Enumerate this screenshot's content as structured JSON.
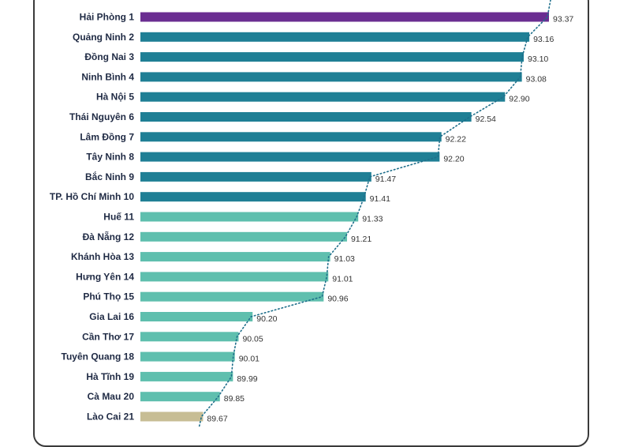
{
  "chart_data": {
    "type": "bar",
    "orientation": "horizontal",
    "categories": [
      "Hải Phòng",
      "Quảng Ninh",
      "Đồng Nai",
      "Ninh Bình",
      "Hà Nội",
      "Thái Nguyên",
      "Lâm Đồng",
      "Tây Ninh",
      "Bắc Ninh",
      "TP. Hồ Chí Minh",
      "Huế",
      "Đà Nẵng",
      "Khánh Hòa",
      "Hưng Yên",
      "Phú Thọ",
      "Gia Lai",
      "Cần Thơ",
      "Tuyên Quang",
      "Hà Tĩnh",
      "Cà Mau",
      "Lào Cai"
    ],
    "ranks": [
      "1",
      "2",
      "3",
      "4",
      "5",
      "6",
      "7",
      "8",
      "9",
      "10",
      "11",
      "12",
      "13",
      "14",
      "15",
      "16",
      "17",
      "18",
      "19",
      "20",
      "21"
    ],
    "values": [
      93.37,
      93.16,
      93.1,
      93.08,
      92.9,
      92.54,
      92.22,
      92.2,
      91.47,
      91.41,
      91.33,
      91.21,
      91.03,
      91.01,
      90.96,
      90.2,
      90.05,
      90.01,
      89.99,
      89.85,
      89.67
    ],
    "value_labels": [
      "93.37",
      "93.16",
      "93.10",
      "93.08",
      "92.90",
      "92.54",
      "92.22",
      "92.20",
      "91.47",
      "91.41",
      "91.33",
      "91.21",
      "91.03",
      "91.01",
      "90.96",
      "90.20",
      "90.05",
      "90.01",
      "89.99",
      "89.85",
      "89.67"
    ],
    "groups": [
      0,
      1,
      1,
      1,
      1,
      1,
      1,
      1,
      1,
      1,
      2,
      2,
      2,
      2,
      2,
      2,
      2,
      2,
      2,
      2,
      3
    ],
    "group_colors": [
      "#6a2d91",
      "#1f7f95",
      "#5fbfae",
      "#c7bd94"
    ],
    "trend_line": "dotted",
    "title": "",
    "xlabel": "",
    "ylabel": ""
  }
}
